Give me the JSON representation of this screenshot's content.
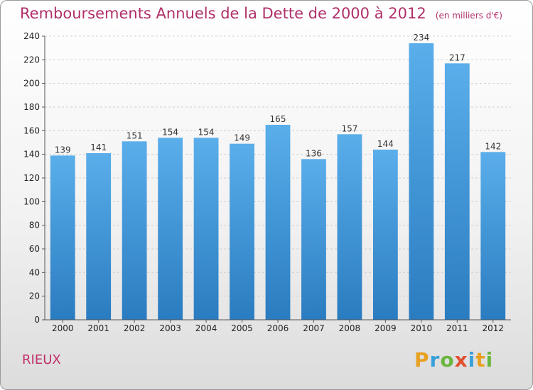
{
  "chart_data": {
    "type": "bar",
    "title": "Remboursements Annuels de la Dette de 2000 à 2012",
    "unit": "(en milliers d'€)",
    "categories": [
      "2000",
      "2001",
      "2002",
      "2003",
      "2004",
      "2005",
      "2006",
      "2007",
      "2008",
      "2009",
      "2010",
      "2011",
      "2012"
    ],
    "values": [
      139,
      141,
      151,
      154,
      154,
      149,
      165,
      136,
      157,
      144,
      234,
      217,
      142
    ],
    "ylim": [
      0,
      240
    ],
    "yticks": [
      0,
      20,
      40,
      60,
      80,
      100,
      120,
      140,
      160,
      180,
      200,
      220,
      240
    ],
    "grid": true,
    "bar_color": "#4a9fe0"
  },
  "place_label": "RIEUX",
  "logo": {
    "text": "Proxiti"
  }
}
